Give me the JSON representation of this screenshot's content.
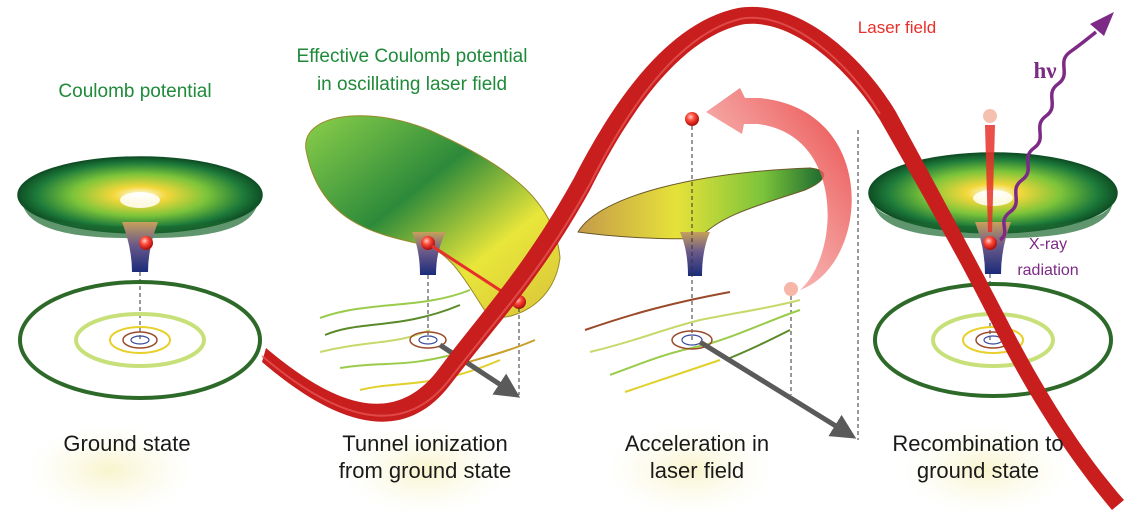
{
  "labels": {
    "coulomb": "Coulomb potential",
    "effective_line1": "Effective Coulomb potential",
    "effective_line2": "in oscillating laser field",
    "laser_field": "Laser field",
    "hv": "hν",
    "xray_line1": "X-ray",
    "xray_line2": "radiation"
  },
  "stages": [
    {
      "line1": "Ground state",
      "line2": ""
    },
    {
      "line1": "Tunnel ionization",
      "line2": "from ground state"
    },
    {
      "line1": "Acceleration in",
      "line2": "laser field"
    },
    {
      "line1": "Recombination to",
      "line2": "ground state"
    }
  ],
  "colors": {
    "laser": "#c81e1e",
    "electron": "#e8302a",
    "photon": "#7d2a86",
    "label_green": "#1f8a3a",
    "arrow_gray": "#5a5a5a"
  }
}
